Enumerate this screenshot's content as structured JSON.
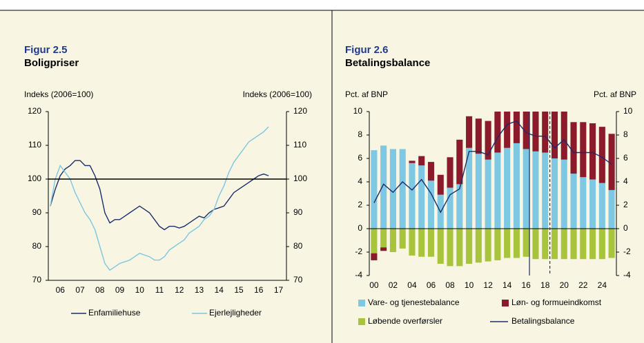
{
  "chart_data": [
    {
      "type": "line",
      "title": "Figur 2.5",
      "subtitle": "Boligpriser",
      "y_label": "Indeks (2006=100)",
      "y2_label": "Indeks (2006=100)",
      "x": [
        2006,
        2006.25,
        2006.5,
        2006.75,
        2007,
        2007.25,
        2007.5,
        2007.75,
        2008,
        2008.25,
        2008.5,
        2008.75,
        2009,
        2009.25,
        2009.5,
        2009.75,
        2010,
        2010.25,
        2010.5,
        2010.75,
        2011,
        2011.25,
        2011.5,
        2011.75,
        2012,
        2012.25,
        2012.5,
        2012.75,
        2013,
        2013.25,
        2013.5,
        2013.75,
        2014,
        2014.25,
        2014.5,
        2014.75,
        2015,
        2015.25,
        2015.5,
        2015.75,
        2016,
        2016.25,
        2016.5,
        2016.75,
        2017
      ],
      "xlim": [
        2005.9,
        2017.9
      ],
      "xticks": [
        {
          "value": 2006.5,
          "label": "06"
        },
        {
          "value": 2007.5,
          "label": "07"
        },
        {
          "value": 2008.5,
          "label": "08"
        },
        {
          "value": 2009.5,
          "label": "09"
        },
        {
          "value": 2010.5,
          "label": "10"
        },
        {
          "value": 2011.5,
          "label": "11"
        },
        {
          "value": 2012.5,
          "label": "12"
        },
        {
          "value": 2013.5,
          "label": "13"
        },
        {
          "value": 2014.5,
          "label": "14"
        },
        {
          "value": 2015.5,
          "label": "15"
        },
        {
          "value": 2016.5,
          "label": "16"
        },
        {
          "value": 2017.5,
          "label": "17"
        }
      ],
      "ylim": [
        70,
        120
      ],
      "yticks": [
        70,
        80,
        90,
        100,
        110,
        120
      ],
      "y2lim": [
        70,
        120
      ],
      "y2ticks": [
        70,
        80,
        90,
        100,
        110,
        120
      ],
      "hline": 100,
      "series": [
        {
          "name": "Enfamiliehuse",
          "color": "#1a2b6b",
          "values": [
            92,
            97,
            101,
            103,
            104,
            105.5,
            105.5,
            104,
            104,
            101,
            97,
            90,
            87,
            88,
            88,
            89,
            90,
            91,
            92,
            91,
            90,
            88,
            86,
            85,
            86,
            86,
            85.5,
            86,
            87,
            88,
            89,
            88.5,
            90,
            91,
            91.5,
            92,
            94,
            96,
            97,
            98,
            99,
            100,
            101,
            101.5,
            101
          ]
        },
        {
          "name": "Ejerlejligheder",
          "color": "#7cc6e0",
          "values": [
            92,
            100,
            104,
            102,
            100,
            96,
            93,
            90,
            88,
            85,
            80,
            75,
            73,
            74,
            75,
            75.5,
            76,
            77,
            78,
            77.5,
            77,
            76,
            76,
            77,
            79,
            80,
            81,
            82,
            84,
            85,
            86,
            88,
            89,
            91,
            95,
            98,
            102,
            105,
            107,
            109,
            111,
            112,
            113,
            114,
            115.5
          ]
        }
      ]
    },
    {
      "type": "bar",
      "title": "Figur 2.6",
      "subtitle": "Betalingsbalance",
      "y_label": "Pct. af BNP",
      "y2_label": "Pct. af BNP",
      "categories": [
        "00",
        null,
        "02",
        null,
        "04",
        null,
        "06",
        null,
        "08",
        null,
        "10",
        null,
        "12",
        null,
        "14",
        null,
        "16",
        null,
        "18",
        null,
        "20",
        null,
        "22",
        null,
        "24",
        null
      ],
      "ylim": [
        -4,
        10
      ],
      "yticks": [
        -4,
        -2,
        0,
        2,
        4,
        6,
        8,
        10
      ],
      "y2lim": [
        -4,
        10
      ],
      "y2ticks": [
        -4,
        -2,
        0,
        2,
        4,
        6,
        8,
        10
      ],
      "series": [
        {
          "name": "Vare- og tjenestebalance",
          "color": "#7ec8e3",
          "values": [
            6.7,
            7.1,
            6.8,
            6.8,
            5.6,
            5.4,
            4.1,
            2.9,
            3.5,
            3.8,
            6.9,
            6.4,
            5.9,
            6.5,
            6.9,
            7.3,
            6.8,
            6.6,
            6.5,
            6.0,
            5.9,
            4.7,
            4.4,
            4.2,
            3.9,
            3.3
          ]
        },
        {
          "name": "Løn- og formueindkomst",
          "color": "#8b1a2b",
          "values": [
            -0.6,
            -0.3,
            0,
            0,
            0.2,
            0.8,
            1.6,
            1.7,
            2.6,
            3.8,
            2.7,
            3.0,
            3.3,
            4.0,
            3.5,
            3.0,
            3.6,
            3.7,
            3.8,
            4.0,
            4.1,
            4.4,
            4.7,
            4.8,
            4.8,
            4.8
          ]
        },
        {
          "name": "Løbende overførsler",
          "color": "#a8c43c",
          "values": [
            -2.1,
            -1.6,
            -2.0,
            -1.7,
            -2.3,
            -2.4,
            -2.4,
            -3.0,
            -3.2,
            -3.2,
            -3.0,
            -2.9,
            -2.8,
            -2.7,
            -2.5,
            -2.5,
            -2.4,
            -2.6,
            -2.6,
            -2.6,
            -2.6,
            -2.6,
            -2.6,
            -2.6,
            -2.6,
            -2.5
          ]
        },
        {
          "name": "Betalingsbalance",
          "type": "line",
          "color": "#1a2b6b",
          "values": [
            2.2,
            3.8,
            3.1,
            4.0,
            3.3,
            4.2,
            3.0,
            1.4,
            2.9,
            3.4,
            6.6,
            6.6,
            6.3,
            7.8,
            8.9,
            9.2,
            8.2,
            7.9,
            7.9,
            6.9,
            7.6,
            6.5,
            6.5,
            6.5,
            6.1,
            5.5
          ]
        }
      ]
    }
  ]
}
